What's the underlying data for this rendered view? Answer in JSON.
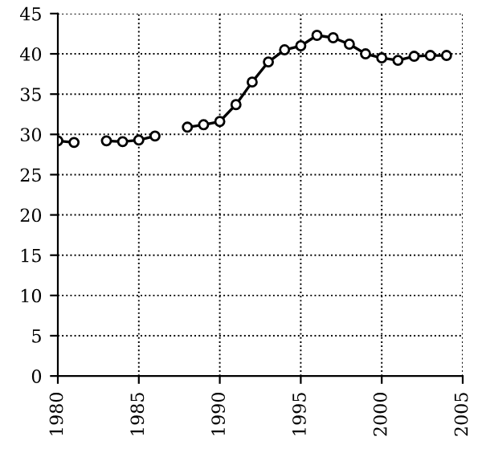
{
  "chart_data": {
    "type": "line",
    "x": [
      1980,
      1981,
      1982,
      1983,
      1984,
      1985,
      1986,
      1987,
      1988,
      1989,
      1990,
      1991,
      1992,
      1993,
      1994,
      1995,
      1996,
      1997,
      1998,
      1999,
      2000,
      2001,
      2002,
      2003,
      2004
    ],
    "series": [
      {
        "color": "#000000",
        "values": [
          29.2,
          29.0,
          null,
          29.2,
          29.1,
          29.3,
          29.8,
          null,
          30.9,
          31.2,
          31.6,
          33.7,
          36.5,
          39.0,
          40.5,
          41.0,
          42.3,
          42.0,
          41.2,
          40.0,
          39.5,
          39.2,
          39.7,
          39.8,
          39.8
        ]
      }
    ],
    "xlim": [
      1980,
      2005
    ],
    "xticks": [
      1980,
      1985,
      1990,
      1995,
      2000,
      2005
    ],
    "ylim": [
      0,
      45
    ],
    "yticks": [
      0,
      5,
      10,
      15,
      20,
      25,
      30,
      35,
      40,
      45
    ],
    "grid": true,
    "marker": "circle",
    "line_style": "solid",
    "legend": false
  }
}
